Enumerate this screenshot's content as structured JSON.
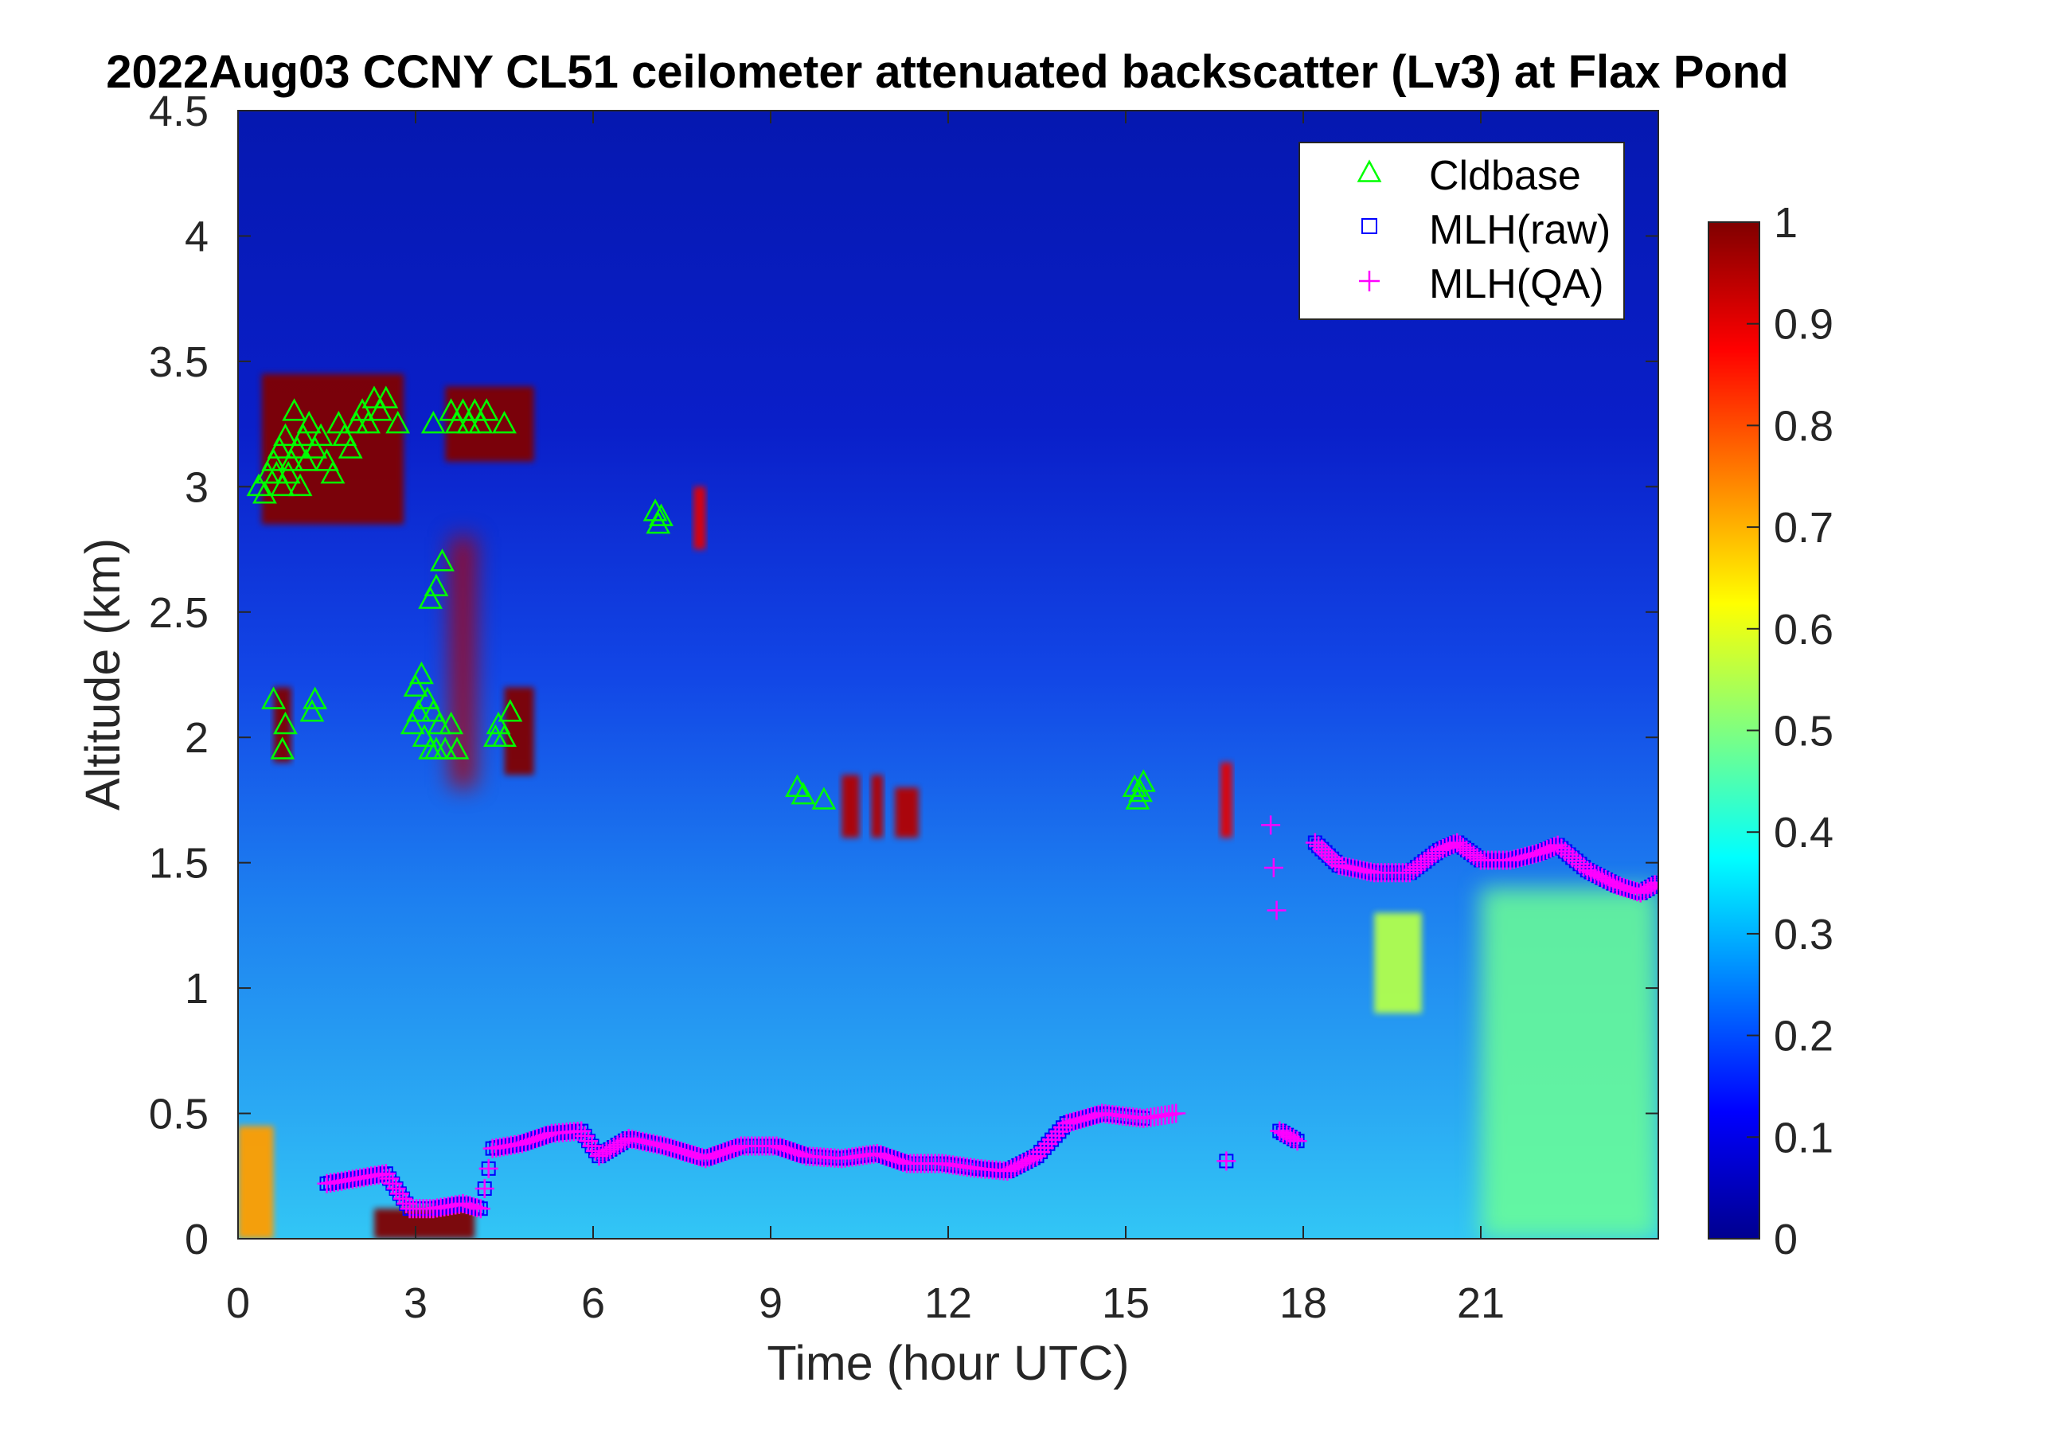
{
  "chart_data": {
    "type": "heatmap",
    "title": "2022Aug03 CCNY CL51 ceilometer attenuated backscatter (Lv3) at Flax Pond",
    "xlabel": "Time (hour UTC)",
    "ylabel": "Altitude (km)",
    "xlim": [
      0,
      24
    ],
    "ylim": [
      0,
      4.5
    ],
    "x_ticks": [
      0,
      3,
      6,
      9,
      12,
      15,
      18,
      21
    ],
    "x_tick_labels": [
      "0",
      "3",
      "6",
      "9",
      "12",
      "15",
      "18",
      "21"
    ],
    "y_ticks": [
      0,
      0.5,
      1,
      1.5,
      2,
      2.5,
      3,
      3.5,
      4,
      4.5
    ],
    "y_tick_labels": [
      "0",
      "0.5",
      "1",
      "1.5",
      "2",
      "2.5",
      "3",
      "3.5",
      "4",
      "4.5"
    ],
    "colorbar": {
      "colormap": "jet",
      "clim": [
        0,
        1
      ],
      "ticks": [
        0,
        0.1,
        0.2,
        0.3,
        0.4,
        0.5,
        0.6,
        0.7,
        0.8,
        0.9,
        1
      ],
      "tick_labels": [
        "0",
        "0.1",
        "0.2",
        "0.3",
        "0.4",
        "0.5",
        "0.6",
        "0.7",
        "0.8",
        "0.9",
        "1"
      ]
    },
    "legend": {
      "placement": "top-right",
      "entries": [
        {
          "label": "Cldbase",
          "marker": "triangle",
          "color": "#00ff00"
        },
        {
          "label": "MLH(raw)",
          "marker": "square",
          "color": "#0000ff"
        },
        {
          "label": "MLH(QA)",
          "marker": "plus",
          "color": "#ff00ff"
        }
      ]
    },
    "backscatter_features": [
      {
        "desc": "surface aerosol",
        "t0": 0.0,
        "t1": 0.6,
        "z0": 0.0,
        "z1": 0.45,
        "value": 0.72
      },
      {
        "desc": "near-surface maximum",
        "t0": 2.3,
        "t1": 4.0,
        "z0": 0.0,
        "z1": 0.12,
        "value": 1.0
      },
      {
        "desc": "cloud layer",
        "t0": 0.4,
        "t1": 2.8,
        "z0": 2.85,
        "z1": 3.45,
        "value": 1.0
      },
      {
        "desc": "cloud layer",
        "t0": 3.5,
        "t1": 5.0,
        "z0": 3.1,
        "z1": 3.4,
        "value": 1.0
      },
      {
        "desc": "cloud column",
        "t0": 3.6,
        "t1": 4.0,
        "z0": 1.8,
        "z1": 2.8,
        "value": 0.95
      },
      {
        "desc": "cloud patch",
        "t0": 4.5,
        "t1": 5.0,
        "z0": 1.85,
        "z1": 2.2,
        "value": 1.0
      },
      {
        "desc": "cloud patch",
        "t0": 0.6,
        "t1": 0.9,
        "z0": 1.9,
        "z1": 2.2,
        "value": 1.0
      },
      {
        "desc": "cloud patch",
        "t0": 7.7,
        "t1": 7.9,
        "z0": 2.75,
        "z1": 3.0,
        "value": 0.9
      },
      {
        "desc": "cloud patch",
        "t0": 10.2,
        "t1": 10.5,
        "z0": 1.6,
        "z1": 1.85,
        "value": 0.95
      },
      {
        "desc": "cloud patch",
        "t0": 10.7,
        "t1": 10.9,
        "z0": 1.6,
        "z1": 1.85,
        "value": 0.95
      },
      {
        "desc": "cloud patch",
        "t0": 11.1,
        "t1": 11.5,
        "z0": 1.6,
        "z1": 1.8,
        "value": 0.95
      },
      {
        "desc": "cloud patch",
        "t0": 16.6,
        "t1": 16.8,
        "z0": 1.6,
        "z1": 1.9,
        "value": 0.9
      },
      {
        "desc": "elevated aerosol plume",
        "t0": 19.2,
        "t1": 20.0,
        "z0": 0.9,
        "z1": 1.3,
        "value": 0.55
      },
      {
        "desc": "boundary layer",
        "t0": 21.0,
        "t1": 24.0,
        "z0": 0.0,
        "z1": 1.4,
        "value": 0.48
      }
    ],
    "series": [
      {
        "name": "Cldbase",
        "points": [
          [
            0.35,
            3.0
          ],
          [
            0.45,
            2.97
          ],
          [
            0.5,
            3.05
          ],
          [
            0.6,
            3.1
          ],
          [
            0.65,
            3.05
          ],
          [
            0.7,
            3.15
          ],
          [
            0.75,
            3.0
          ],
          [
            0.8,
            3.2
          ],
          [
            0.85,
            3.05
          ],
          [
            0.9,
            3.1
          ],
          [
            0.95,
            3.3
          ],
          [
            1.0,
            3.15
          ],
          [
            1.05,
            3.0
          ],
          [
            1.1,
            3.2
          ],
          [
            1.15,
            3.1
          ],
          [
            1.2,
            3.25
          ],
          [
            1.3,
            3.15
          ],
          [
            1.4,
            3.2
          ],
          [
            1.5,
            3.1
          ],
          [
            1.6,
            3.05
          ],
          [
            1.7,
            3.25
          ],
          [
            1.8,
            3.2
          ],
          [
            1.9,
            3.15
          ],
          [
            2.0,
            3.25
          ],
          [
            2.1,
            3.3
          ],
          [
            2.2,
            3.25
          ],
          [
            2.3,
            3.35
          ],
          [
            2.4,
            3.3
          ],
          [
            2.5,
            3.35
          ],
          [
            2.7,
            3.25
          ],
          [
            3.3,
            3.25
          ],
          [
            3.6,
            3.3
          ],
          [
            3.7,
            3.25
          ],
          [
            3.8,
            3.3
          ],
          [
            3.9,
            3.25
          ],
          [
            4.0,
            3.3
          ],
          [
            4.1,
            3.25
          ],
          [
            4.2,
            3.3
          ],
          [
            4.5,
            3.25
          ],
          [
            3.25,
            2.55
          ],
          [
            3.35,
            2.6
          ],
          [
            3.45,
            2.7
          ],
          [
            0.6,
            2.15
          ],
          [
            0.75,
            1.95
          ],
          [
            0.8,
            2.05
          ],
          [
            1.25,
            2.1
          ],
          [
            1.3,
            2.15
          ],
          [
            2.95,
            2.05
          ],
          [
            3.0,
            2.2
          ],
          [
            3.05,
            2.1
          ],
          [
            3.1,
            2.25
          ],
          [
            3.15,
            2.0
          ],
          [
            3.2,
            2.15
          ],
          [
            3.25,
            1.95
          ],
          [
            3.3,
            2.1
          ],
          [
            3.35,
            1.95
          ],
          [
            3.4,
            2.05
          ],
          [
            3.5,
            1.95
          ],
          [
            3.6,
            2.05
          ],
          [
            3.7,
            1.95
          ],
          [
            4.35,
            2.0
          ],
          [
            4.4,
            2.05
          ],
          [
            4.5,
            2.0
          ],
          [
            4.6,
            2.1
          ],
          [
            7.05,
            2.9
          ],
          [
            7.1,
            2.85
          ],
          [
            7.15,
            2.88
          ],
          [
            9.45,
            1.8
          ],
          [
            9.55,
            1.77
          ],
          [
            9.9,
            1.75
          ],
          [
            15.15,
            1.8
          ],
          [
            15.2,
            1.75
          ],
          [
            15.25,
            1.78
          ],
          [
            15.3,
            1.82
          ]
        ]
      },
      {
        "name": "MLH(raw)",
        "points": [
          [
            1.5,
            0.22
          ],
          [
            2.0,
            0.24
          ],
          [
            2.5,
            0.26
          ],
          [
            2.9,
            0.12
          ],
          [
            3.3,
            0.12
          ],
          [
            3.8,
            0.14
          ],
          [
            4.1,
            0.12
          ],
          [
            4.3,
            0.36
          ],
          [
            4.8,
            0.38
          ],
          [
            5.3,
            0.42
          ],
          [
            5.8,
            0.43
          ],
          [
            6.1,
            0.33
          ],
          [
            6.6,
            0.4
          ],
          [
            7.2,
            0.37
          ],
          [
            7.9,
            0.32
          ],
          [
            8.5,
            0.37
          ],
          [
            9.1,
            0.37
          ],
          [
            9.6,
            0.33
          ],
          [
            10.2,
            0.32
          ],
          [
            10.8,
            0.34
          ],
          [
            11.3,
            0.3
          ],
          [
            11.9,
            0.3
          ],
          [
            12.5,
            0.28
          ],
          [
            13.0,
            0.27
          ],
          [
            13.5,
            0.33
          ],
          [
            14.0,
            0.46
          ],
          [
            14.6,
            0.5
          ],
          [
            15.3,
            0.48
          ],
          [
            16.7,
            0.31
          ],
          [
            17.6,
            0.43
          ],
          [
            17.9,
            0.39
          ],
          [
            18.2,
            1.58
          ],
          [
            18.6,
            1.49
          ],
          [
            19.2,
            1.46
          ],
          [
            19.8,
            1.46
          ],
          [
            20.3,
            1.55
          ],
          [
            20.6,
            1.58
          ],
          [
            21.0,
            1.51
          ],
          [
            21.5,
            1.51
          ],
          [
            22.0,
            1.54
          ],
          [
            22.3,
            1.57
          ],
          [
            22.8,
            1.47
          ],
          [
            23.3,
            1.41
          ],
          [
            23.7,
            1.38
          ],
          [
            24.0,
            1.42
          ]
        ]
      },
      {
        "name": "MLH(QA)",
        "points": [
          [
            1.5,
            0.22
          ],
          [
            2.0,
            0.24
          ],
          [
            2.5,
            0.26
          ],
          [
            2.9,
            0.12
          ],
          [
            3.3,
            0.12
          ],
          [
            3.8,
            0.14
          ],
          [
            4.1,
            0.12
          ],
          [
            4.3,
            0.36
          ],
          [
            4.8,
            0.38
          ],
          [
            5.3,
            0.42
          ],
          [
            5.8,
            0.43
          ],
          [
            6.1,
            0.33
          ],
          [
            6.6,
            0.4
          ],
          [
            7.2,
            0.37
          ],
          [
            7.9,
            0.32
          ],
          [
            8.5,
            0.37
          ],
          [
            9.1,
            0.37
          ],
          [
            9.6,
            0.33
          ],
          [
            10.2,
            0.32
          ],
          [
            10.8,
            0.34
          ],
          [
            11.3,
            0.3
          ],
          [
            11.9,
            0.3
          ],
          [
            12.5,
            0.28
          ],
          [
            13.0,
            0.27
          ],
          [
            13.5,
            0.33
          ],
          [
            14.0,
            0.46
          ],
          [
            14.6,
            0.5
          ],
          [
            15.3,
            0.48
          ],
          [
            15.85,
            0.5
          ],
          [
            16.7,
            0.31
          ],
          [
            17.45,
            1.65
          ],
          [
            17.55,
            1.31
          ],
          [
            17.6,
            0.43
          ],
          [
            17.9,
            0.39
          ],
          [
            18.2,
            1.58
          ],
          [
            18.6,
            1.49
          ],
          [
            19.2,
            1.46
          ],
          [
            19.8,
            1.46
          ],
          [
            20.3,
            1.55
          ],
          [
            20.6,
            1.58
          ],
          [
            20.7,
            1.56
          ],
          [
            21.0,
            1.51
          ],
          [
            21.5,
            1.51
          ],
          [
            22.0,
            1.54
          ],
          [
            22.3,
            1.57
          ],
          [
            22.8,
            1.47
          ],
          [
            23.3,
            1.41
          ],
          [
            23.7,
            1.38
          ],
          [
            24.0,
            1.42
          ]
        ]
      }
    ]
  }
}
